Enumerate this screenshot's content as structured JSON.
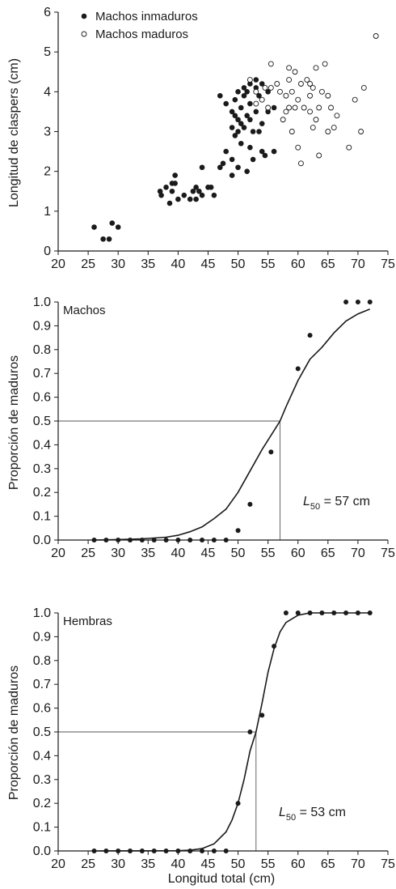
{
  "chart_data": [
    {
      "type": "scatter",
      "ylabel": "Longitud de claspers (cm)",
      "xlim": [
        20,
        75
      ],
      "ylim": [
        0,
        6
      ],
      "xticks": [
        20,
        25,
        30,
        35,
        40,
        45,
        50,
        55,
        60,
        65,
        70,
        75
      ],
      "yticks": [
        0,
        1,
        2,
        3,
        4,
        5,
        6
      ],
      "legend_position": "top-left",
      "series": [
        {
          "name": "Machos inmaduros",
          "marker": "filled-circle",
          "points": [
            [
              26,
              0.6
            ],
            [
              27.5,
              0.3
            ],
            [
              28.5,
              0.3
            ],
            [
              29,
              0.7
            ],
            [
              30,
              0.6
            ],
            [
              37,
              1.5
            ],
            [
              37.2,
              1.4
            ],
            [
              38,
              1.6
            ],
            [
              38.6,
              1.2
            ],
            [
              39,
              1.5
            ],
            [
              39,
              1.7
            ],
            [
              39.5,
              1.9
            ],
            [
              39.5,
              1.7
            ],
            [
              40,
              1.3
            ],
            [
              41,
              1.4
            ],
            [
              42,
              1.3
            ],
            [
              42.5,
              1.5
            ],
            [
              43,
              1.3
            ],
            [
              43,
              1.6
            ],
            [
              43.5,
              1.5
            ],
            [
              44,
              1.4
            ],
            [
              44,
              2.1
            ],
            [
              45,
              1.6
            ],
            [
              45.5,
              1.6
            ],
            [
              46,
              1.4
            ],
            [
              47,
              2.1
            ],
            [
              47,
              3.9
            ],
            [
              47.5,
              2.2
            ],
            [
              48,
              3.7
            ],
            [
              48,
              2.5
            ],
            [
              49,
              1.9
            ],
            [
              49,
              2.3
            ],
            [
              49,
              3.1
            ],
            [
              49,
              3.5
            ],
            [
              49.5,
              2.9
            ],
            [
              49.5,
              3.4
            ],
            [
              49.5,
              3.8
            ],
            [
              50,
              2.1
            ],
            [
              50,
              3.0
            ],
            [
              50,
              3.3
            ],
            [
              50,
              4.0
            ],
            [
              50.5,
              2.7
            ],
            [
              50.5,
              3.2
            ],
            [
              50.5,
              3.6
            ],
            [
              51,
              3.1
            ],
            [
              51,
              3.9
            ],
            [
              51,
              4.1
            ],
            [
              51.5,
              2.0
            ],
            [
              51.5,
              3.4
            ],
            [
              51.5,
              4.0
            ],
            [
              52,
              2.6
            ],
            [
              52,
              3.3
            ],
            [
              52,
              3.7
            ],
            [
              52,
              4.2
            ],
            [
              52.5,
              2.3
            ],
            [
              52.5,
              3.0
            ],
            [
              53,
              3.5
            ],
            [
              53,
              4.1
            ],
            [
              53,
              4.3
            ],
            [
              53.5,
              3.0
            ],
            [
              53.5,
              3.9
            ],
            [
              54,
              2.5
            ],
            [
              54,
              3.2
            ],
            [
              54,
              4.2
            ],
            [
              54.5,
              2.4
            ],
            [
              55,
              3.5
            ],
            [
              55,
              4.0
            ],
            [
              56,
              2.5
            ],
            [
              56,
              3.6
            ]
          ]
        },
        {
          "name": "Machos maduros",
          "marker": "open-circle",
          "points": [
            [
              52,
              4.3
            ],
            [
              53,
              3.7
            ],
            [
              53,
              4.0
            ],
            [
              54,
              3.8
            ],
            [
              54.5,
              4.1
            ],
            [
              55,
              3.6
            ],
            [
              55.5,
              4.1
            ],
            [
              55.5,
              4.7
            ],
            [
              56.5,
              4.2
            ],
            [
              57,
              4.0
            ],
            [
              57.5,
              3.3
            ],
            [
              58,
              3.5
            ],
            [
              58,
              3.9
            ],
            [
              58.5,
              3.6
            ],
            [
              58.5,
              4.3
            ],
            [
              58.5,
              4.6
            ],
            [
              59,
              3.0
            ],
            [
              59,
              4.0
            ],
            [
              59.5,
              3.6
            ],
            [
              59.5,
              4.5
            ],
            [
              60,
              2.6
            ],
            [
              60,
              3.8
            ],
            [
              60.5,
              2.2
            ],
            [
              60.5,
              4.2
            ],
            [
              61,
              3.6
            ],
            [
              61.5,
              4.3
            ],
            [
              62,
              3.5
            ],
            [
              62,
              3.9
            ],
            [
              62,
              4.2
            ],
            [
              62.5,
              3.1
            ],
            [
              62.5,
              4.1
            ],
            [
              63,
              3.3
            ],
            [
              63,
              4.6
            ],
            [
              63.5,
              2.4
            ],
            [
              63.5,
              3.6
            ],
            [
              64,
              4.0
            ],
            [
              64.5,
              4.7
            ],
            [
              65,
              3.0
            ],
            [
              65,
              3.9
            ],
            [
              65.5,
              3.6
            ],
            [
              66,
              3.1
            ],
            [
              66.5,
              3.4
            ],
            [
              68.5,
              2.6
            ],
            [
              69.5,
              3.8
            ],
            [
              70.5,
              3.0
            ],
            [
              71,
              4.1
            ],
            [
              73,
              5.4
            ]
          ]
        }
      ]
    },
    {
      "type": "line",
      "panel_label": "Machos",
      "ylabel": "Proporción de maduros",
      "xlim": [
        20,
        75
      ],
      "ylim": [
        0,
        1.0
      ],
      "xticks": [
        20,
        25,
        30,
        35,
        40,
        45,
        50,
        55,
        60,
        65,
        70,
        75
      ],
      "yticks": [
        0,
        0.1,
        0.2,
        0.3,
        0.4,
        0.5,
        0.6,
        0.7,
        0.8,
        0.9,
        1.0
      ],
      "observed": [
        [
          26,
          0
        ],
        [
          28,
          0
        ],
        [
          30,
          0
        ],
        [
          32,
          0
        ],
        [
          34,
          0
        ],
        [
          36,
          0
        ],
        [
          38,
          0
        ],
        [
          40,
          0
        ],
        [
          42,
          0
        ],
        [
          44,
          0
        ],
        [
          46,
          0
        ],
        [
          48,
          0
        ],
        [
          50,
          0.04
        ],
        [
          52,
          0.15
        ],
        [
          55.5,
          0.37
        ],
        [
          60,
          0.72
        ],
        [
          62,
          0.86
        ],
        [
          68,
          1.0
        ],
        [
          70,
          1.0
        ],
        [
          72,
          1.0
        ]
      ],
      "fitted": [
        [
          26,
          0
        ],
        [
          30,
          0.002
        ],
        [
          34,
          0.005
        ],
        [
          38,
          0.012
        ],
        [
          40,
          0.02
        ],
        [
          42,
          0.035
        ],
        [
          44,
          0.055
        ],
        [
          46,
          0.09
        ],
        [
          48,
          0.13
        ],
        [
          50,
          0.2
        ],
        [
          52,
          0.29
        ],
        [
          54,
          0.38
        ],
        [
          56,
          0.46
        ],
        [
          57,
          0.5
        ],
        [
          58,
          0.56
        ],
        [
          60,
          0.67
        ],
        [
          62,
          0.76
        ],
        [
          64,
          0.81
        ],
        [
          66,
          0.87
        ],
        [
          68,
          0.92
        ],
        [
          70,
          0.95
        ],
        [
          72,
          0.97
        ]
      ],
      "reference_line": {
        "x": 57,
        "y": 0.5
      },
      "annotation_l": "L",
      "annotation_sub": "50",
      "annotation_rest": " = 57 cm"
    },
    {
      "type": "line",
      "panel_label": "Hembras",
      "ylabel": "Proporción de maduros",
      "xlabel": "Longitud total (cm)",
      "xlim": [
        20,
        75
      ],
      "ylim": [
        0,
        1.0
      ],
      "xticks": [
        20,
        25,
        30,
        35,
        40,
        45,
        50,
        55,
        60,
        65,
        70,
        75
      ],
      "yticks": [
        0,
        0.1,
        0.2,
        0.3,
        0.4,
        0.5,
        0.6,
        0.7,
        0.8,
        0.9,
        1.0
      ],
      "observed": [
        [
          26,
          0
        ],
        [
          28,
          0
        ],
        [
          30,
          0
        ],
        [
          32,
          0
        ],
        [
          34,
          0
        ],
        [
          36,
          0
        ],
        [
          38,
          0
        ],
        [
          40,
          0
        ],
        [
          42,
          0
        ],
        [
          44,
          0
        ],
        [
          46,
          0
        ],
        [
          48,
          0
        ],
        [
          50,
          0.2
        ],
        [
          52,
          0.5
        ],
        [
          54,
          0.57
        ],
        [
          56,
          0.86
        ],
        [
          58,
          1.0
        ],
        [
          60,
          1.0
        ],
        [
          62,
          1.0
        ],
        [
          64,
          1.0
        ],
        [
          66,
          1.0
        ],
        [
          68,
          1.0
        ],
        [
          70,
          1.0
        ],
        [
          72,
          1.0
        ]
      ],
      "fitted": [
        [
          26,
          0
        ],
        [
          40,
          0.001
        ],
        [
          42,
          0.003
        ],
        [
          44,
          0.01
        ],
        [
          46,
          0.03
        ],
        [
          48,
          0.08
        ],
        [
          49,
          0.13
        ],
        [
          50,
          0.2
        ],
        [
          51,
          0.3
        ],
        [
          52,
          0.42
        ],
        [
          53,
          0.5
        ],
        [
          54,
          0.62
        ],
        [
          55,
          0.75
        ],
        [
          56,
          0.85
        ],
        [
          57,
          0.92
        ],
        [
          58,
          0.96
        ],
        [
          60,
          0.99
        ],
        [
          62,
          1.0
        ],
        [
          72,
          1.0
        ]
      ],
      "reference_line": {
        "x": 53,
        "y": 0.5
      },
      "annotation_l": "L",
      "annotation_sub": "50",
      "annotation_rest": " = 53 cm"
    }
  ]
}
